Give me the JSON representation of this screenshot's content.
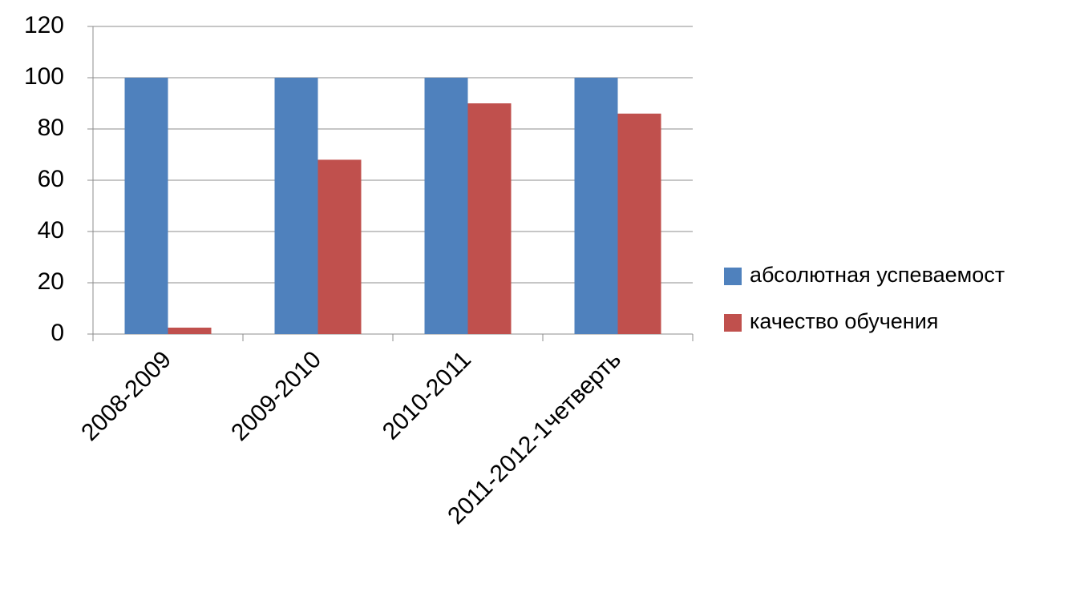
{
  "chart_data": {
    "type": "bar",
    "categories": [
      "2008-2009",
      "2009-2010",
      "2010-2011",
      "2011-2012-1четверть"
    ],
    "series": [
      {
        "name": "абсолютная успеваемост",
        "color": "#4f81bd",
        "values": [
          100,
          100,
          100,
          100
        ]
      },
      {
        "name": "качество обучения",
        "color": "#c0504d",
        "values": [
          2.5,
          68,
          90,
          86
        ]
      }
    ],
    "ylim": [
      0,
      120
    ],
    "yticks": [
      0,
      20,
      40,
      60,
      80,
      100,
      120
    ],
    "grid": true,
    "legend": "right"
  }
}
